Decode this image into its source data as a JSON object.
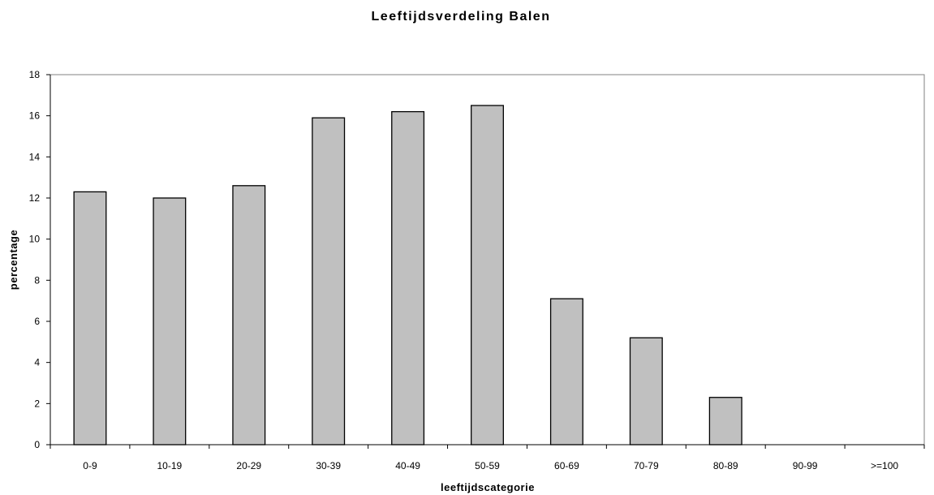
{
  "chart_data": {
    "type": "bar",
    "title": "Leeftijdsverdeling Balen",
    "xlabel": "leeftijdscategorie",
    "ylabel": "percentage",
    "categories": [
      "0-9",
      "10-19",
      "20-29",
      "30-39",
      "40-49",
      "50-59",
      "60-69",
      "70-79",
      "80-89",
      "90-99",
      ">=100"
    ],
    "values": [
      12.3,
      12.0,
      12.6,
      15.9,
      16.2,
      16.5,
      7.1,
      5.2,
      2.3,
      0,
      0
    ],
    "ylim": [
      0,
      18
    ],
    "yticks": [
      0,
      2,
      4,
      6,
      8,
      10,
      12,
      14,
      16,
      18
    ],
    "grid": false,
    "legend": "none",
    "colors": {
      "bar_fill": "#c0c0c0",
      "bar_stroke": "#000000",
      "plot_border": "#808080"
    }
  }
}
